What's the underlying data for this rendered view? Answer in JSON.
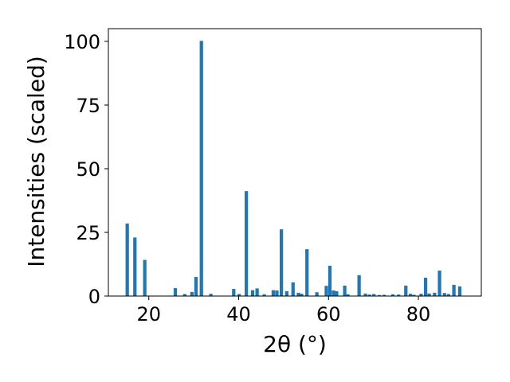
{
  "chart_data": {
    "type": "bar",
    "xlabel": "2θ (°)",
    "ylabel": "Intensities (scaled)",
    "xlim": [
      11,
      94
    ],
    "ylim": [
      0,
      105
    ],
    "xticks": [
      20,
      40,
      60,
      80
    ],
    "yticks": [
      0,
      25,
      50,
      75,
      100
    ],
    "grid": false,
    "bar_color": "#1f77b4",
    "bar_width": 0.75,
    "x": [
      15.2,
      16.9,
      19.1,
      25.9,
      28.0,
      29.6,
      30.5,
      31.7,
      33.8,
      38.9,
      40.1,
      41.7,
      43.1,
      44.1,
      45.7,
      47.7,
      48.5,
      49.5,
      50.7,
      52.1,
      53.3,
      54.0,
      55.2,
      57.4,
      59.5,
      60.3,
      61.1,
      61.8,
      63.6,
      64.3,
      66.8,
      68.2,
      69.1,
      70.1,
      71.3,
      72.4,
      74.3,
      75.6,
      77.2,
      78.2,
      79.0,
      80.6,
      81.6,
      82.4,
      83.6,
      84.7,
      85.8,
      86.7,
      87.9,
      89.2
    ],
    "values": [
      28.5,
      23.0,
      14.2,
      3.1,
      0.8,
      1.6,
      7.5,
      100.2,
      0.9,
      2.8,
      0.8,
      41.2,
      2.3,
      3.0,
      0.7,
      2.3,
      2.2,
      26.2,
      1.9,
      5.4,
      1.3,
      0.9,
      18.4,
      1.5,
      4.0,
      11.9,
      2.2,
      1.9,
      4.1,
      0.7,
      8.2,
      1.0,
      0.6,
      0.8,
      0.4,
      0.5,
      0.7,
      0.6,
      4.1,
      0.9,
      0.5,
      0.9,
      7.2,
      1.0,
      1.3,
      10.0,
      1.2,
      0.8,
      4.4,
      3.8
    ]
  }
}
